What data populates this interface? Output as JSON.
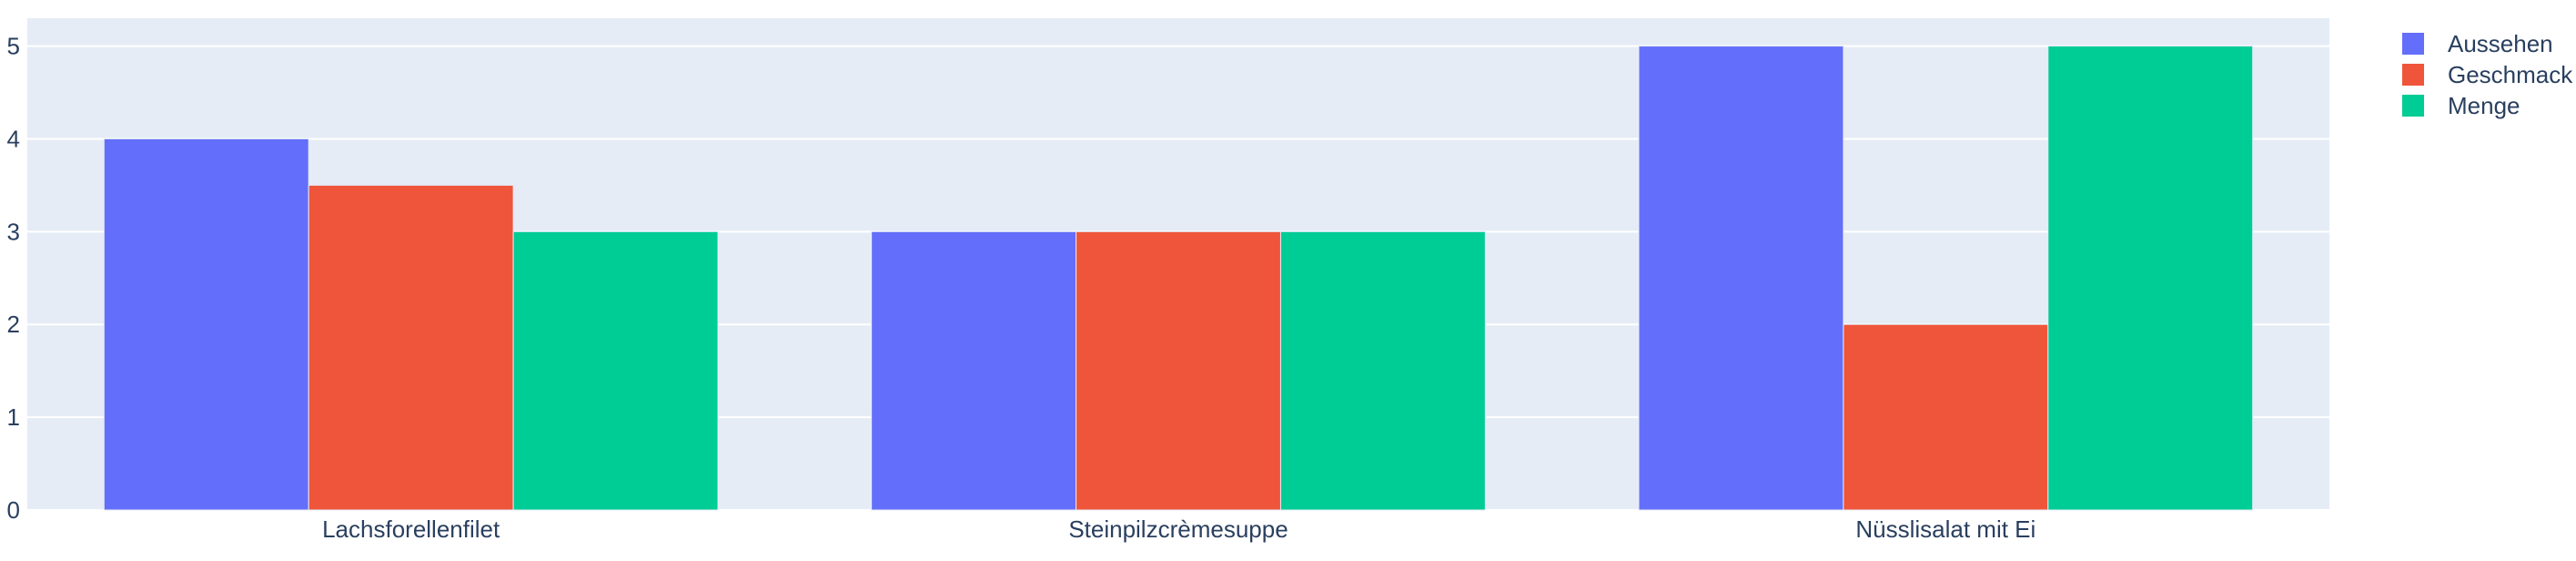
{
  "chart_data": {
    "type": "bar",
    "categories": [
      "Lachsforellenfilet",
      "Steinpilzcrèmesuppe",
      "Nüsslisalat mit Ei"
    ],
    "series": [
      {
        "name": "Aussehen",
        "values": [
          4,
          3,
          5
        ],
        "color": "#636efa"
      },
      {
        "name": "Geschmack",
        "values": [
          3.5,
          3,
          2
        ],
        "color": "#ef553b"
      },
      {
        "name": "Menge",
        "values": [
          3,
          3,
          5
        ],
        "color": "#00cc96"
      }
    ],
    "ylim": [
      0,
      5.3
    ],
    "yticks": [
      0,
      1,
      2,
      3,
      4,
      5
    ],
    "grid": true,
    "legend_position": "top-right",
    "plot_bgcolor": "#e5ecf6"
  }
}
